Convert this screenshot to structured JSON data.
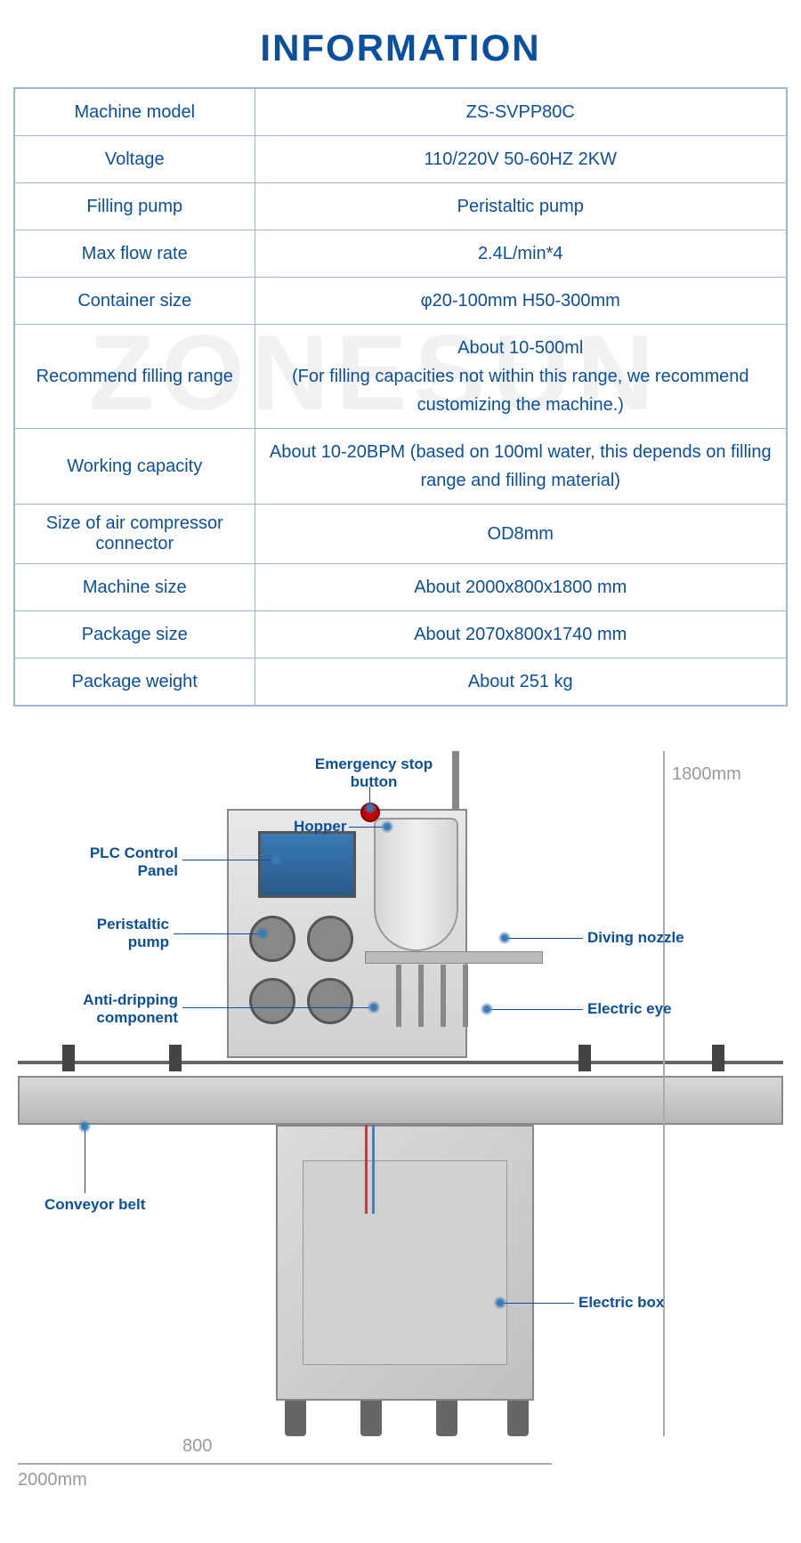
{
  "title": "INFORMATION",
  "watermark": "ZONESUN",
  "colors": {
    "primary": "#0b4fa0",
    "border": "#9bb8d8",
    "dim": "#999999",
    "background": "#ffffff"
  },
  "table": {
    "rows": [
      {
        "label": "Machine model",
        "value": "ZS-SVPP80C"
      },
      {
        "label": "Voltage",
        "value": "110/220V 50-60HZ 2KW"
      },
      {
        "label": "Filling pump",
        "value": "Peristaltic pump"
      },
      {
        "label": "Max flow rate",
        "value": "2.4L/min*4"
      },
      {
        "label": "Container size",
        "value": "φ20-100mm H50-300mm"
      },
      {
        "label": "Recommend filling range",
        "value": "About 10-500ml\n(For filling capacities not within this range, we recommend customizing the machine.)"
      },
      {
        "label": "Working capacity",
        "value": "About 10-20BPM (based on 100ml water, this depends on filling range and filling material)"
      },
      {
        "label": "Size of air compressor connector",
        "value": "OD8mm"
      },
      {
        "label": "Machine size",
        "value": "About 2000x800x1800 mm"
      },
      {
        "label": "Package size",
        "value": "About 2070x800x1740 mm"
      },
      {
        "label": "Package weight",
        "value": "About 251 kg"
      }
    ]
  },
  "diagram": {
    "dimensions": {
      "height_label": "1800mm",
      "depth_label": "800",
      "width_label": "2000mm"
    },
    "callouts": {
      "emergency_stop": "Emergency stop\nbutton",
      "hopper": "Hopper",
      "plc_panel": "PLC Control\nPanel",
      "peristaltic_pump": "Peristaltic\npump",
      "anti_dripping": "Anti-dripping\ncomponent",
      "diving_nozzle": "Diving nozzle",
      "electric_eye": "Electric eye",
      "conveyor_belt": "Conveyor belt",
      "electric_box": "Electric box"
    }
  }
}
